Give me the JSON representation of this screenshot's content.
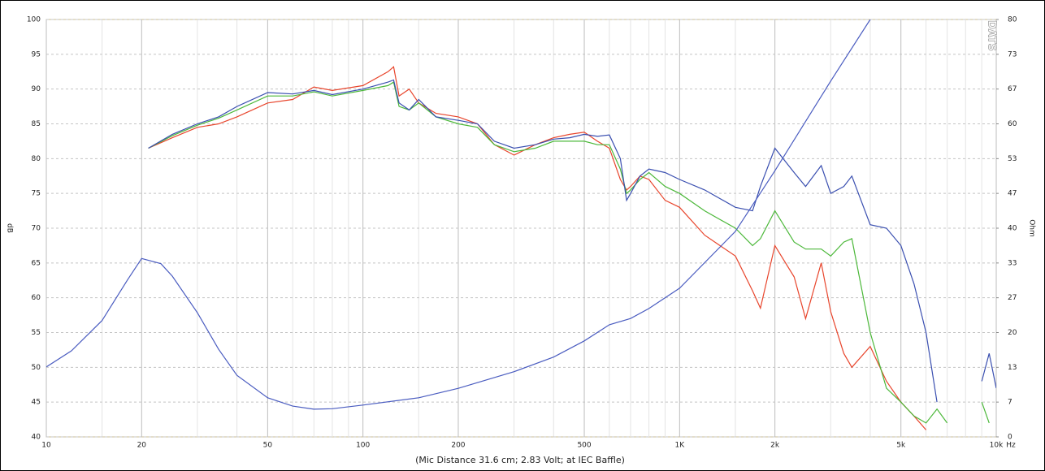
{
  "chart_data": {
    "type": "line",
    "caption": "(Mic Distance 31.6 cm; 2.83 Volt; at IEC Baffle)",
    "ylabel": "dB",
    "y2label": "Ohm",
    "xunit": "Hz",
    "watermark": "DATS",
    "xscale": "log",
    "xlim": [
      10,
      10000
    ],
    "xticks": [
      10,
      20,
      50,
      100,
      200,
      500,
      {
        "value": 1000,
        "label": "1K"
      },
      {
        "value": 2000,
        "label": "2k"
      },
      {
        "value": 5000,
        "label": "5k"
      },
      {
        "value": 10000,
        "label": "10k"
      }
    ],
    "xgrid_minor": [
      15,
      30,
      40,
      60,
      70,
      80,
      90,
      150,
      300,
      400,
      600,
      700,
      800,
      900,
      1500,
      3000,
      4000,
      6000,
      7000,
      8000,
      9000
    ],
    "ylim": [
      40,
      100
    ],
    "yticks": [
      40,
      45,
      50,
      55,
      60,
      65,
      70,
      75,
      80,
      85,
      90,
      95,
      100
    ],
    "y2lim": [
      0,
      80
    ],
    "y2ticks": [
      0,
      {
        "value": 6.67,
        "label": "7"
      },
      {
        "value": 13.33,
        "label": "13"
      },
      20,
      {
        "value": 26.67,
        "label": "27"
      },
      {
        "value": 33.33,
        "label": "33"
      },
      40,
      {
        "value": 46.67,
        "label": "47"
      },
      {
        "value": 53.33,
        "label": "53"
      },
      60,
      {
        "value": 66.67,
        "label": "67"
      },
      {
        "value": 73.33,
        "label": "73"
      },
      80
    ],
    "grid": true,
    "series": [
      {
        "color": "#e8452c",
        "x": [
          21,
          25,
          30,
          35,
          40,
          50,
          60,
          70,
          80,
          100,
          120,
          125,
          130,
          140,
          150,
          170,
          200,
          230,
          260,
          300,
          350,
          400,
          450,
          500,
          550,
          600,
          650,
          680,
          700,
          750,
          800,
          900,
          1000,
          1200,
          1500,
          1700,
          1800,
          2000,
          2300,
          2500,
          2800,
          3000,
          3300,
          3500,
          4000,
          4500,
          5000,
          5500,
          6000,
          6500,
          7000,
          8000,
          9000,
          9500,
          10000
        ],
        "values": [
          81.5,
          83,
          84.5,
          85,
          86,
          88,
          88.5,
          90.3,
          89.8,
          90.5,
          92.5,
          93.2,
          89,
          90,
          88,
          86.5,
          86,
          85,
          82,
          80.5,
          82,
          83,
          83.5,
          83.8,
          82.5,
          81.5,
          77,
          75.5,
          76,
          77.5,
          77,
          74,
          73,
          69,
          66,
          61,
          58.5,
          67.5,
          63,
          57,
          65,
          58,
          52,
          50,
          53,
          48,
          45,
          43,
          41,
          null,
          null,
          null,
          null,
          43,
          null
        ]
      },
      {
        "color": "#4cb83a",
        "x": [
          21,
          25,
          30,
          35,
          40,
          50,
          60,
          70,
          80,
          100,
          120,
          125,
          130,
          140,
          150,
          170,
          200,
          230,
          260,
          300,
          350,
          400,
          450,
          500,
          550,
          600,
          650,
          680,
          700,
          750,
          800,
          900,
          1000,
          1200,
          1500,
          1700,
          1800,
          2000,
          2300,
          2500,
          2800,
          3000,
          3300,
          3500,
          4000,
          4500,
          5000,
          5500,
          6000,
          6500,
          7000,
          8000,
          9000,
          9500,
          10000
        ],
        "values": [
          81.5,
          83.3,
          84.8,
          85.8,
          87,
          89,
          89,
          89.6,
          89,
          89.8,
          90.5,
          91,
          87.5,
          87,
          88,
          86,
          85,
          84.5,
          82,
          81,
          81.5,
          82.5,
          82.5,
          82.5,
          82,
          82,
          78.5,
          75,
          75.5,
          77,
          78,
          76,
          75,
          72.5,
          70,
          67.5,
          68.5,
          72.5,
          68,
          67,
          67,
          66,
          68,
          68.5,
          55,
          47,
          45,
          43,
          42,
          44,
          42,
          null,
          45,
          42,
          null
        ]
      },
      {
        "color": "#3a4fb0",
        "x": [
          21,
          25,
          30,
          35,
          40,
          50,
          60,
          70,
          80,
          100,
          120,
          125,
          130,
          140,
          150,
          170,
          200,
          230,
          260,
          300,
          350,
          400,
          450,
          500,
          550,
          600,
          650,
          680,
          700,
          750,
          800,
          900,
          1000,
          1200,
          1500,
          1700,
          1800,
          2000,
          2300,
          2500,
          2800,
          3000,
          3300,
          3500,
          4000,
          4500,
          5000,
          5500,
          6000,
          6500,
          7000,
          8000,
          9000,
          9500,
          10000
        ],
        "values": [
          81.5,
          83.5,
          85,
          86,
          87.5,
          89.5,
          89.3,
          89.8,
          89.2,
          90,
          91,
          91.3,
          88,
          87,
          88.5,
          86,
          85.5,
          85,
          82.5,
          81.5,
          82,
          82.8,
          83,
          83.5,
          83.2,
          83.4,
          80,
          74,
          75,
          77.5,
          78.5,
          78,
          77,
          75.5,
          73,
          72.5,
          76,
          81.5,
          78,
          76,
          79,
          75,
          76,
          77.5,
          70.5,
          70,
          67.5,
          62,
          55,
          45,
          null,
          null,
          48,
          52,
          47
        ]
      },
      {
        "color": "#4a5cc0",
        "axis": "y2",
        "x": [
          10,
          12,
          15,
          18,
          20,
          23,
          25,
          30,
          35,
          40,
          50,
          60,
          70,
          80,
          100,
          150,
          200,
          300,
          400,
          500,
          600,
          700,
          800,
          1000,
          1500,
          2000,
          3000,
          4000
        ],
        "values": [
          13.4,
          16.5,
          22.3,
          30,
          34.2,
          33.2,
          30.8,
          23.8,
          16.8,
          11.8,
          7.5,
          5.9,
          5.3,
          5.4,
          6.1,
          7.5,
          9.3,
          12.5,
          15.3,
          18.4,
          21.5,
          22.7,
          24.6,
          28.5,
          39.4,
          51,
          68.2,
          80
        ]
      }
    ]
  }
}
